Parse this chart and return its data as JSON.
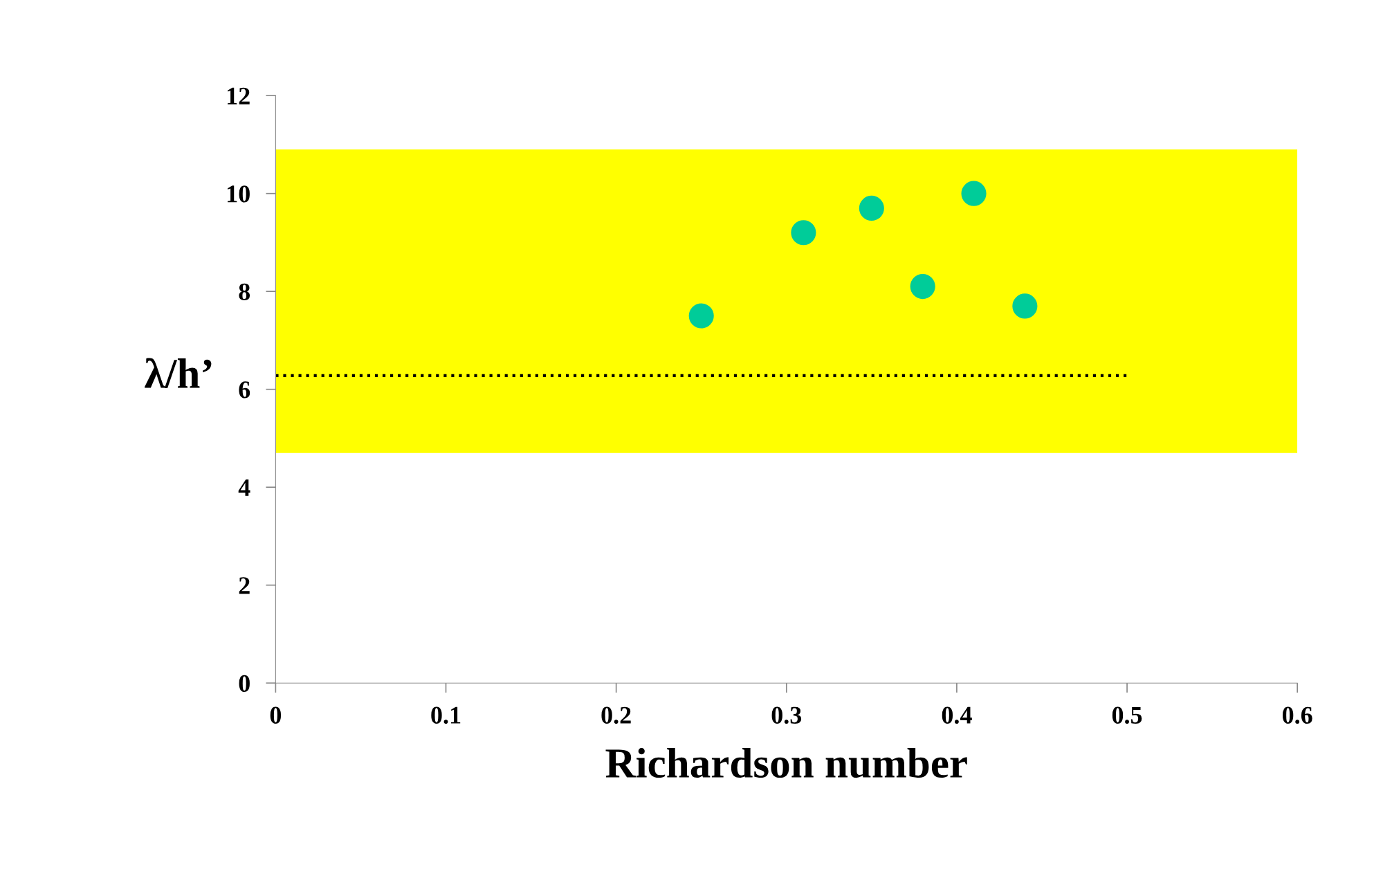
{
  "chart_data": {
    "type": "scatter",
    "xlabel": "Richardson number",
    "ylabel": "λ/h’",
    "xlim": [
      0,
      0.6
    ],
    "xticks": [
      0,
      0.1,
      0.2,
      0.3,
      0.4,
      0.5,
      0.6
    ],
    "ylim": [
      0,
      12
    ],
    "yticks": [
      0,
      2,
      4,
      6,
      8,
      10,
      12
    ],
    "grid": false,
    "legend": false,
    "marker": "circle",
    "series": [
      {
        "color": "#00cc99",
        "x": [
          0.25,
          0.31,
          0.35,
          0.38,
          0.41,
          0.44
        ],
        "values": [
          7.5,
          9.2,
          9.7,
          8.1,
          10.0,
          7.7
        ]
      },
      {
        "type": "line",
        "color": "#000000",
        "line_style": "dotted",
        "marker": "none",
        "x": [
          0,
          0.5
        ],
        "values": [
          6.28,
          6.28
        ]
      }
    ],
    "bands": [
      {
        "axis": "y",
        "from": 4.7,
        "to": 10.9,
        "color": "#ffff00"
      }
    ]
  }
}
